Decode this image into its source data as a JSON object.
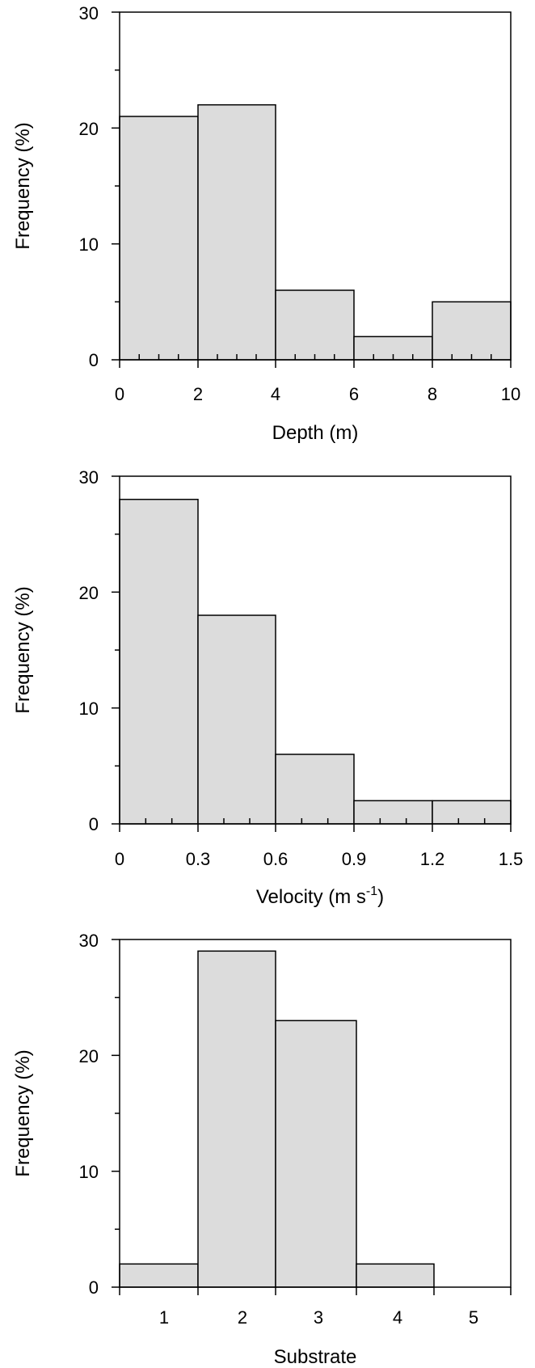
{
  "colors": {
    "bar_fill": "#dcdcdc",
    "stroke": "#000000",
    "background": "#ffffff"
  },
  "chart_data": [
    {
      "type": "bar",
      "xlabel": "Depth (m)",
      "ylabel": "Frequency (%)",
      "ylim": [
        0,
        30
      ],
      "yticks": [
        "0",
        "10",
        "20",
        "30"
      ],
      "xticks": [
        "0",
        "2",
        "4",
        "6",
        "8",
        "10"
      ],
      "bin_edges": [
        0,
        2,
        4,
        6,
        8,
        10
      ],
      "values": [
        21,
        22,
        6,
        2,
        5
      ],
      "grid": false
    },
    {
      "type": "bar",
      "xlabel": "Velocity (m s",
      "xlabel_superscript": "-1",
      "xlabel_suffix": ")",
      "ylabel": "Frequency (%)",
      "ylim": [
        0,
        30
      ],
      "yticks": [
        "0",
        "10",
        "20",
        "30"
      ],
      "xticks": [
        "0",
        "0.3",
        "0.6",
        "0.9",
        "1.2",
        "1.5"
      ],
      "bin_edges": [
        0,
        0.3,
        0.6,
        0.9,
        1.2,
        1.5
      ],
      "values": [
        28,
        18,
        6,
        2,
        2
      ],
      "grid": false
    },
    {
      "type": "bar",
      "xlabel": "Substrate",
      "ylabel": "Frequency (%)",
      "ylim": [
        0,
        30
      ],
      "yticks": [
        "0",
        "10",
        "20",
        "30"
      ],
      "categories": [
        "1",
        "2",
        "3",
        "4",
        "5"
      ],
      "values": [
        2,
        29,
        23,
        2,
        0
      ],
      "grid": false
    }
  ]
}
